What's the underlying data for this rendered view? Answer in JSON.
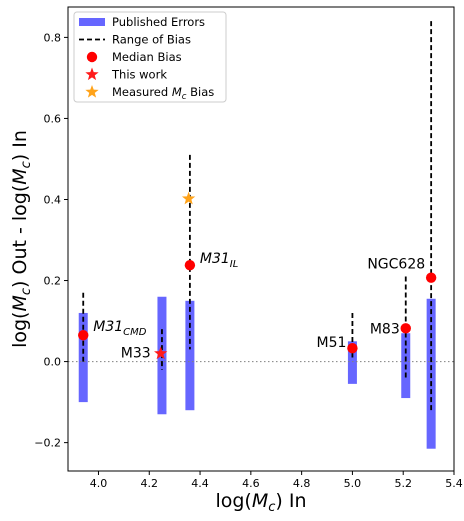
{
  "chart_data": {
    "type": "scatter",
    "xlabel": "log(Mc) In",
    "ylabel": "log(Mc) Out - log(Mc) In",
    "xlim": [
      3.88,
      5.4
    ],
    "ylim": [
      -0.27,
      0.875
    ],
    "xticks": [
      "4.0",
      "4.2",
      "4.4",
      "4.6",
      "4.8",
      "5.0",
      "5.2",
      "5.4"
    ],
    "xtick_values": [
      4.0,
      4.2,
      4.4,
      4.6,
      4.8,
      5.0,
      5.2,
      5.4
    ],
    "yticks": [
      "−0.2",
      "0.0",
      "0.2",
      "0.4",
      "0.6",
      "0.8"
    ],
    "ytick_values": [
      -0.2,
      0.0,
      0.2,
      0.4,
      0.6,
      0.8
    ],
    "reference_line": 0.0,
    "legend_position": "top-left",
    "legend": [
      "Published Errors",
      "Range of Bias",
      "Median Bias",
      "This work",
      "Measured Mc Bias"
    ],
    "colors": {
      "published_errors": "#6666ff",
      "median_bias": "#ff0000",
      "this_work": "#ff1a1a",
      "measured_bias": "#ffa31a",
      "range": "#000000",
      "reference": "#808080"
    },
    "published_errors": [
      {
        "x": 3.94,
        "low": -0.1,
        "high": 0.12
      },
      {
        "x": 4.25,
        "low": -0.13,
        "high": 0.16
      },
      {
        "x": 4.36,
        "low": -0.12,
        "high": 0.15
      },
      {
        "x": 5.0,
        "low": -0.055,
        "high": 0.05
      },
      {
        "x": 5.21,
        "low": -0.09,
        "high": 0.07
      },
      {
        "x": 5.31,
        "low": -0.215,
        "high": 0.155
      }
    ],
    "bias_range": [
      {
        "x": 3.94,
        "low": 0.0,
        "high": 0.17
      },
      {
        "x": 4.25,
        "low": -0.02,
        "high": 0.08
      },
      {
        "x": 4.36,
        "low": 0.03,
        "high": 0.51
      },
      {
        "x": 5.0,
        "low": 0.01,
        "high": 0.12
      },
      {
        "x": 5.21,
        "low": -0.04,
        "high": 0.21
      },
      {
        "x": 5.31,
        "low": -0.12,
        "high": 0.84
      }
    ],
    "median_bias": [
      {
        "x": 3.94,
        "y": 0.065
      },
      {
        "x": 4.36,
        "y": 0.238
      },
      {
        "x": 5.0,
        "y": 0.033
      },
      {
        "x": 5.21,
        "y": 0.082
      },
      {
        "x": 5.31,
        "y": 0.207
      }
    ],
    "this_work": [
      {
        "x": 4.245,
        "y": 0.02
      }
    ],
    "measured_bias": [
      {
        "x": 4.355,
        "y": 0.402
      }
    ],
    "annotations": [
      {
        "label": "M31",
        "sub": "CMD",
        "x": 3.94,
        "y": 0.065
      },
      {
        "label": "M33",
        "sub": "",
        "x": 4.245,
        "y": 0.02
      },
      {
        "label": "M31",
        "sub": "IL",
        "x": 4.36,
        "y": 0.238
      },
      {
        "label": "M51",
        "sub": "",
        "x": 5.0,
        "y": 0.033
      },
      {
        "label": "M83",
        "sub": "",
        "x": 5.21,
        "y": 0.082
      },
      {
        "label": "NGC628",
        "sub": "",
        "x": 5.31,
        "y": 0.207
      }
    ]
  }
}
